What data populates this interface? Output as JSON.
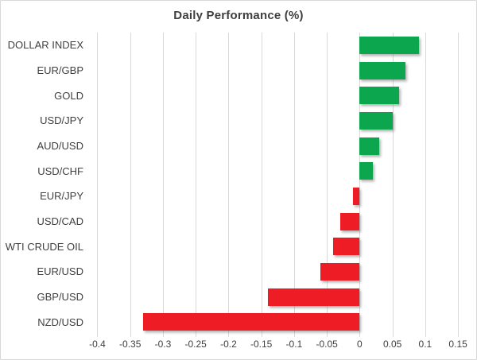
{
  "window": {
    "background": "#ffffff",
    "border_color": "#d8d8d8"
  },
  "chart_data": {
    "type": "bar",
    "orientation": "horizontal",
    "title": "Daily Performance (%)",
    "categories": [
      "DOLLAR INDEX",
      "EUR/GBP",
      "GOLD",
      "USD/JPY",
      "AUD/USD",
      "USD/CHF",
      "EUR/JPY",
      "USD/CAD",
      "WTI CRUDE OIL",
      "EUR/USD",
      "GBP/USD",
      "NZD/USD"
    ],
    "values": [
      0.09,
      0.07,
      0.06,
      0.05,
      0.03,
      0.02,
      -0.01,
      -0.03,
      -0.04,
      -0.06,
      -0.14,
      -0.33
    ],
    "positive_color": "#0CA64E",
    "negative_color": "#EE1C25",
    "x_ticks": [
      -0.4,
      -0.35,
      -0.3,
      -0.25,
      -0.2,
      -0.15,
      -0.1,
      -0.05,
      0,
      0.05,
      0.1,
      0.15
    ],
    "x_tick_labels": [
      "-0.4",
      "-0.35",
      "-0.3",
      "-0.25",
      "-0.2",
      "-0.15",
      "-0.1",
      "-0.05",
      "0",
      "0.05",
      "0.1",
      "0.15"
    ],
    "xlim": [
      -0.4042,
      0.1535
    ],
    "grid": true,
    "gridline_color": "#d9d9d9",
    "text_color": "#404040",
    "legend": "none",
    "xlabel": "",
    "ylabel": ""
  }
}
